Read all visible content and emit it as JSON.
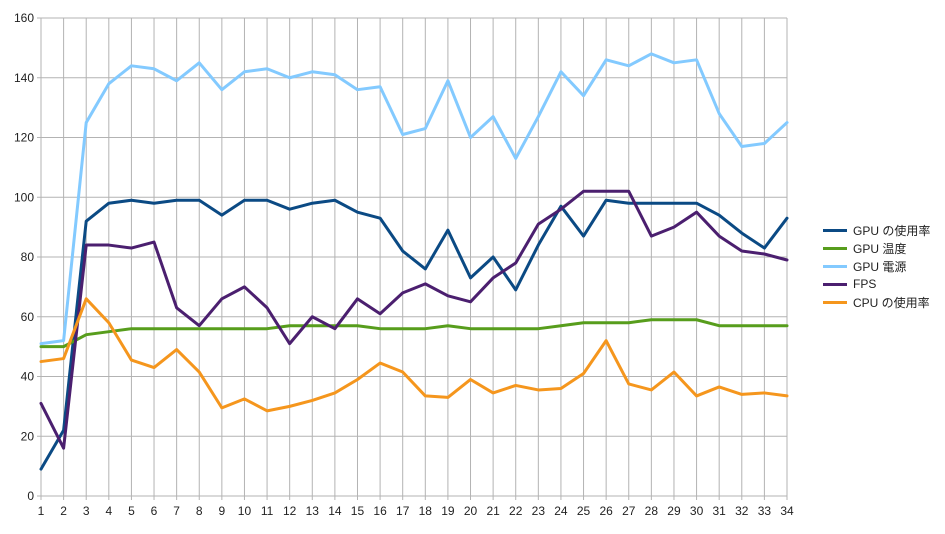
{
  "chart_data": {
    "type": "line",
    "title": "",
    "xlabel": "",
    "ylabel": "",
    "x": [
      1,
      2,
      3,
      4,
      5,
      6,
      7,
      8,
      9,
      10,
      11,
      12,
      13,
      14,
      15,
      16,
      17,
      18,
      19,
      20,
      21,
      22,
      23,
      24,
      25,
      26,
      27,
      28,
      29,
      30,
      31,
      32,
      33,
      34
    ],
    "ylim": [
      0,
      160
    ],
    "yticks": [
      0,
      20,
      40,
      60,
      80,
      100,
      120,
      140,
      160
    ],
    "grid": true,
    "legend_position": "right",
    "series": [
      {
        "name": "GPU の使用率",
        "color": "#0b4a84",
        "values": [
          9,
          22,
          92,
          98,
          99,
          98,
          99,
          99,
          94,
          99,
          99,
          96,
          98,
          99,
          95,
          93,
          82,
          76,
          89,
          73,
          80,
          69,
          84,
          97,
          87,
          99,
          98,
          98,
          98,
          98,
          94,
          88,
          83,
          93
        ]
      },
      {
        "name": "GPU 温度",
        "color": "#579d1c",
        "values": [
          50,
          50,
          54,
          55,
          56,
          56,
          56,
          56,
          56,
          56,
          56,
          57,
          57,
          57,
          57,
          56,
          56,
          56,
          57,
          56,
          56,
          56,
          56,
          57,
          58,
          58,
          58,
          59,
          59,
          59,
          57,
          57,
          57,
          57
        ]
      },
      {
        "name": "GPU 電源",
        "color": "#83caff",
        "values": [
          51,
          52,
          125,
          138,
          144,
          143,
          139,
          145,
          136,
          142,
          143,
          140,
          142,
          141,
          136,
          137,
          121,
          123,
          139,
          120,
          127,
          113,
          127,
          142,
          134,
          146,
          144,
          148,
          145,
          146,
          128,
          117,
          118,
          125
        ]
      },
      {
        "name": "FPS",
        "color": "#4b1f6f",
        "values": [
          31,
          16,
          84,
          84,
          83,
          85,
          63,
          57,
          66,
          70,
          63,
          51,
          60,
          56,
          66,
          61,
          68,
          71,
          67,
          65,
          73,
          78,
          91,
          96,
          102,
          102,
          102,
          87,
          90,
          95,
          87,
          82,
          81,
          79
        ]
      },
      {
        "name": "CPU の使用率",
        "color": "#f5961d",
        "values": [
          45,
          46,
          66,
          58,
          45.5,
          43,
          49,
          41.5,
          29.5,
          32.5,
          28.5,
          30,
          32,
          34.5,
          39,
          44.5,
          41.5,
          33.5,
          33,
          39,
          34.5,
          37,
          35.5,
          36,
          41,
          52,
          37.5,
          35.5,
          41.5,
          33.5,
          36.5,
          34,
          34.5,
          33.5
        ]
      }
    ]
  }
}
